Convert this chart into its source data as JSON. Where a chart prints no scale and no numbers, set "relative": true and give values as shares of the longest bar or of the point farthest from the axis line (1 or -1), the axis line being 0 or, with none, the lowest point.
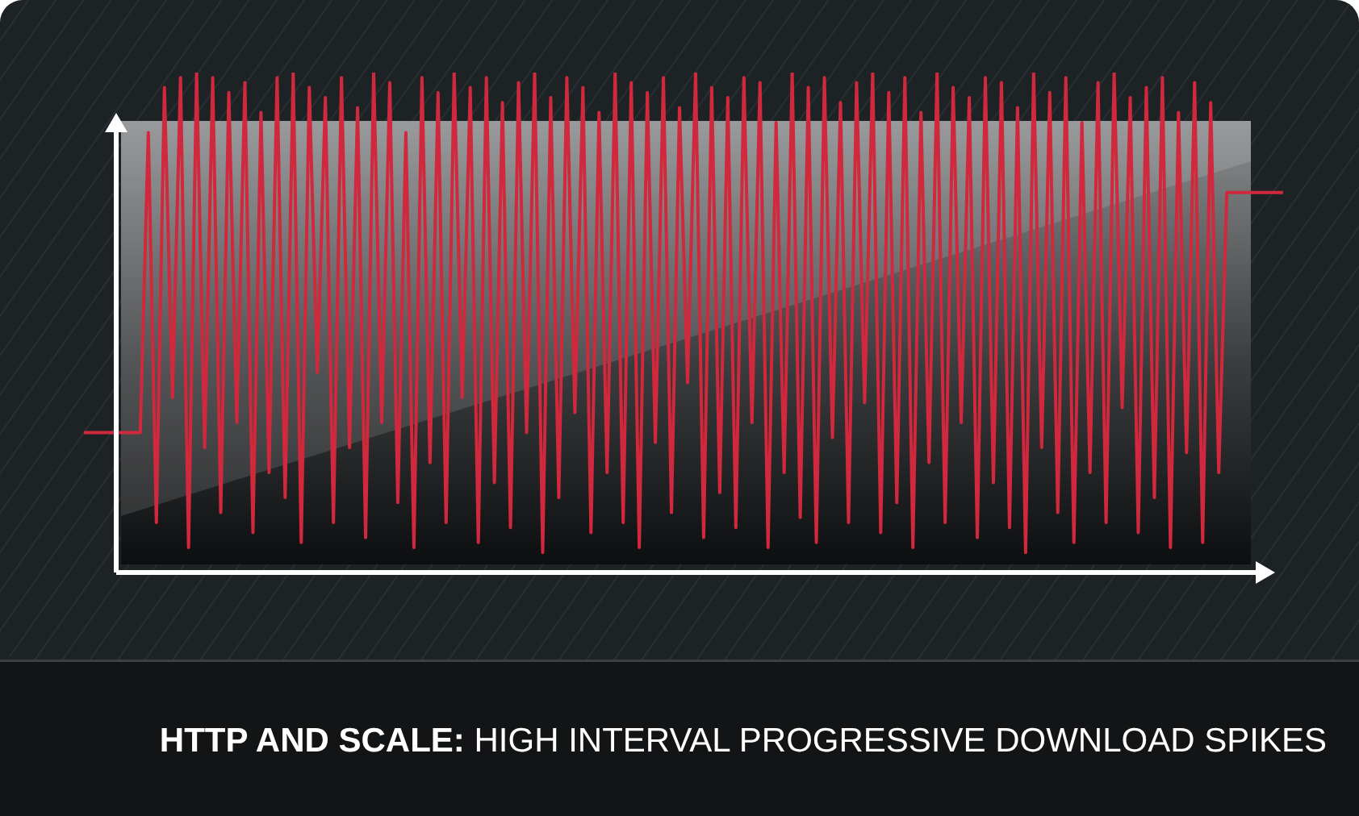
{
  "chart_data": {
    "type": "line",
    "title": "HTTP AND SCALE: HIGH INTERVAL PROGRESSIVE DOWNLOAD SPIKES",
    "relative": true,
    "grid": false,
    "marker": "none",
    "line_style": "solid",
    "categories": [
      null,
      null,
      null,
      null,
      null,
      null,
      null,
      null,
      null,
      null,
      null,
      null,
      null,
      null,
      null,
      null,
      null,
      null,
      null,
      null,
      null,
      null,
      null,
      null,
      null,
      null,
      null,
      null,
      null,
      null,
      null,
      null,
      null,
      null,
      null,
      null,
      null,
      null,
      null,
      null,
      null,
      null,
      null,
      null,
      null,
      null,
      null,
      null,
      null,
      null,
      null,
      null,
      null,
      null,
      null,
      null,
      null,
      null,
      null,
      null,
      null,
      null,
      null,
      null,
      null,
      null,
      null,
      null,
      null,
      null,
      null,
      null,
      null,
      null,
      null,
      null,
      null,
      null,
      null,
      null,
      null,
      null,
      null,
      null,
      null,
      null,
      null,
      null,
      null,
      null,
      null,
      null,
      null,
      null,
      null,
      null,
      null,
      null,
      null,
      null,
      null,
      null,
      null,
      null,
      null,
      null,
      null,
      null,
      null,
      null,
      null,
      null,
      null,
      null,
      null,
      null,
      null,
      null,
      null,
      null,
      null,
      null,
      null,
      null,
      null,
      null,
      null,
      null,
      null,
      null,
      null,
      null,
      null,
      null,
      null,
      null,
      null,
      null,
      null,
      null,
      null,
      null,
      null,
      null,
      null,
      null,
      null,
      null,
      null,
      null
    ],
    "series": [
      {
        "color": "#d0283c",
        "values": [
          0.28,
          0.28,
          0.28,
          0.28,
          0.28,
          0.28,
          0.28,
          0.28,
          0.88,
          0.1,
          0.97,
          0.35,
          0.99,
          0.05,
          1,
          0.25,
          0.99,
          0.12,
          0.96,
          0.3,
          0.98,
          0.08,
          0.92,
          0.2,
          0.99,
          0.15,
          1,
          0.06,
          0.97,
          0.4,
          0.95,
          0.1,
          0.99,
          0.25,
          0.93,
          0.07,
          1,
          0.3,
          0.98,
          0.14,
          0.88,
          0.05,
          0.99,
          0.22,
          0.96,
          0.1,
          1,
          0.35,
          0.97,
          0.06,
          0.99,
          0.18,
          0.94,
          0.09,
          0.98,
          0.28,
          1,
          0.04,
          0.95,
          0.15,
          0.99,
          0.32,
          0.97,
          0.08,
          0.92,
          0.2,
          1,
          0.1,
          0.98,
          0.05,
          0.96,
          0.26,
          0.99,
          0.12,
          0.93,
          0.38,
          1,
          0.07,
          0.97,
          0.16,
          0.95,
          0.09,
          0.99,
          0.3,
          0.98,
          0.05,
          0.9,
          0.2,
          1,
          0.11,
          0.97,
          0.06,
          0.99,
          0.27,
          0.94,
          0.1,
          0.98,
          0.34,
          1,
          0.08,
          0.96,
          0.14,
          0.99,
          0.05,
          0.92,
          0.22,
          1,
          0.1,
          0.97,
          0.3,
          0.95,
          0.07,
          0.99,
          0.18,
          0.98,
          0.09,
          0.93,
          0.04,
          1,
          0.25,
          0.96,
          0.12,
          0.99,
          0.06,
          0.9,
          0.2,
          0.98,
          0.1,
          1,
          0.33,
          0.95,
          0.08,
          0.97,
          0.15,
          0.99,
          0.05,
          0.92,
          0.24,
          0.98,
          0.06,
          0.94,
          0.2,
          0.76,
          0.76,
          0.76,
          0.76,
          0.76,
          0.76,
          0.76,
          0.76
        ]
      }
    ]
  }
}
